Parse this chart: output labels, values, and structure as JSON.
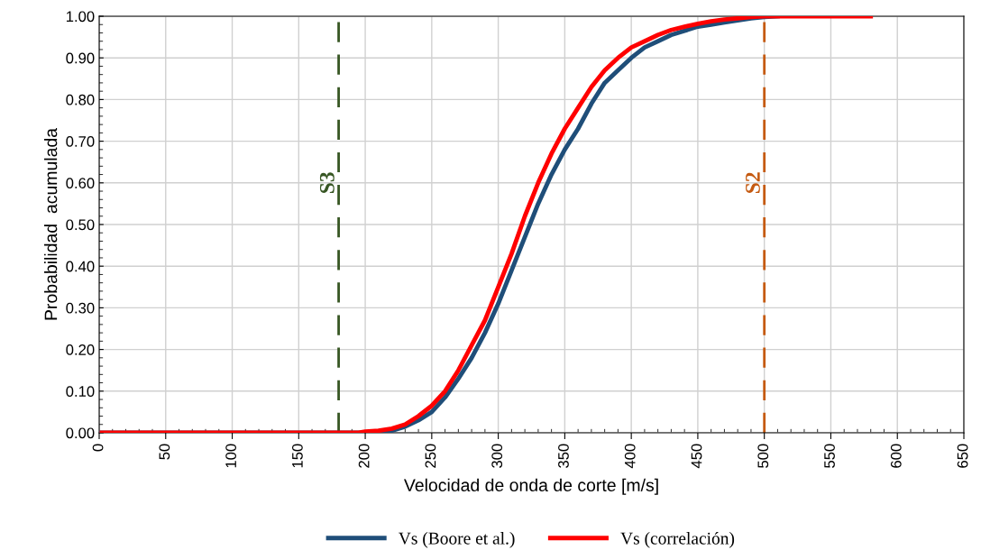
{
  "chart_data": {
    "type": "line",
    "xlabel": "Velocidad de onda de corte [m/s]",
    "ylabel": "Probabilidad  acumulada",
    "xlim": [
      0,
      650
    ],
    "xticks": [
      0,
      50,
      100,
      150,
      200,
      250,
      300,
      350,
      400,
      450,
      500,
      550,
      600,
      650
    ],
    "ylim": [
      0,
      1
    ],
    "yticks": [
      {
        "value": 0,
        "label": "0.00"
      },
      {
        "value": 0.1,
        "label": "0.10"
      },
      {
        "value": 0.2,
        "label": "0.20"
      },
      {
        "value": 0.3,
        "label": "0.30"
      },
      {
        "value": 0.4,
        "label": "0.40"
      },
      {
        "value": 0.5,
        "label": "0.50"
      },
      {
        "value": 0.6,
        "label": "0.60"
      },
      {
        "value": 0.7,
        "label": "0.70"
      },
      {
        "value": 0.8,
        "label": "0.80"
      },
      {
        "value": 0.9,
        "label": "0.90"
      },
      {
        "value": 1,
        "label": "1.00"
      }
    ],
    "grid": true,
    "legend": "bottom",
    "marker": "none",
    "line_style": "solid",
    "series": [
      {
        "name": "Vs (Boore et al.)",
        "color": "#1f4e79",
        "x": [
          0,
          210,
          220,
          230,
          240,
          250,
          260,
          270,
          280,
          290,
          300,
          310,
          320,
          330,
          340,
          350,
          360,
          370,
          380,
          390,
          400,
          410,
          420,
          430,
          440,
          450,
          460,
          470,
          480,
          490,
          500,
          510
        ],
        "values": [
          0,
          0,
          0.005,
          0.015,
          0.03,
          0.05,
          0.085,
          0.13,
          0.18,
          0.24,
          0.31,
          0.39,
          0.47,
          0.55,
          0.62,
          0.68,
          0.73,
          0.79,
          0.84,
          0.87,
          0.9,
          0.925,
          0.94,
          0.955,
          0.965,
          0.975,
          0.98,
          0.985,
          0.99,
          0.995,
          0.998,
          1.0
        ]
      },
      {
        "name": "Vs (correlación)",
        "color": "#ff0000",
        "x": [
          2,
          195,
          200,
          210,
          220,
          230,
          240,
          250,
          260,
          270,
          280,
          290,
          300,
          310,
          320,
          330,
          340,
          350,
          360,
          370,
          380,
          390,
          400,
          410,
          420,
          430,
          440,
          450,
          460,
          470,
          480,
          490,
          500,
          580
        ],
        "values": [
          0,
          0,
          0.003,
          0.005,
          0.01,
          0.02,
          0.04,
          0.065,
          0.1,
          0.15,
          0.21,
          0.27,
          0.35,
          0.43,
          0.52,
          0.6,
          0.67,
          0.73,
          0.78,
          0.83,
          0.87,
          0.9,
          0.925,
          0.94,
          0.955,
          0.967,
          0.975,
          0.982,
          0.988,
          0.992,
          0.995,
          0.998,
          1.0,
          1.0
        ]
      }
    ],
    "ref_lines": [
      {
        "axis": "x",
        "value": 180,
        "label": "S3",
        "color": "#375623",
        "line_style": "dashed"
      },
      {
        "axis": "x",
        "value": 500,
        "label": "S2",
        "color": "#c55a11",
        "line_style": "dashed"
      }
    ]
  }
}
